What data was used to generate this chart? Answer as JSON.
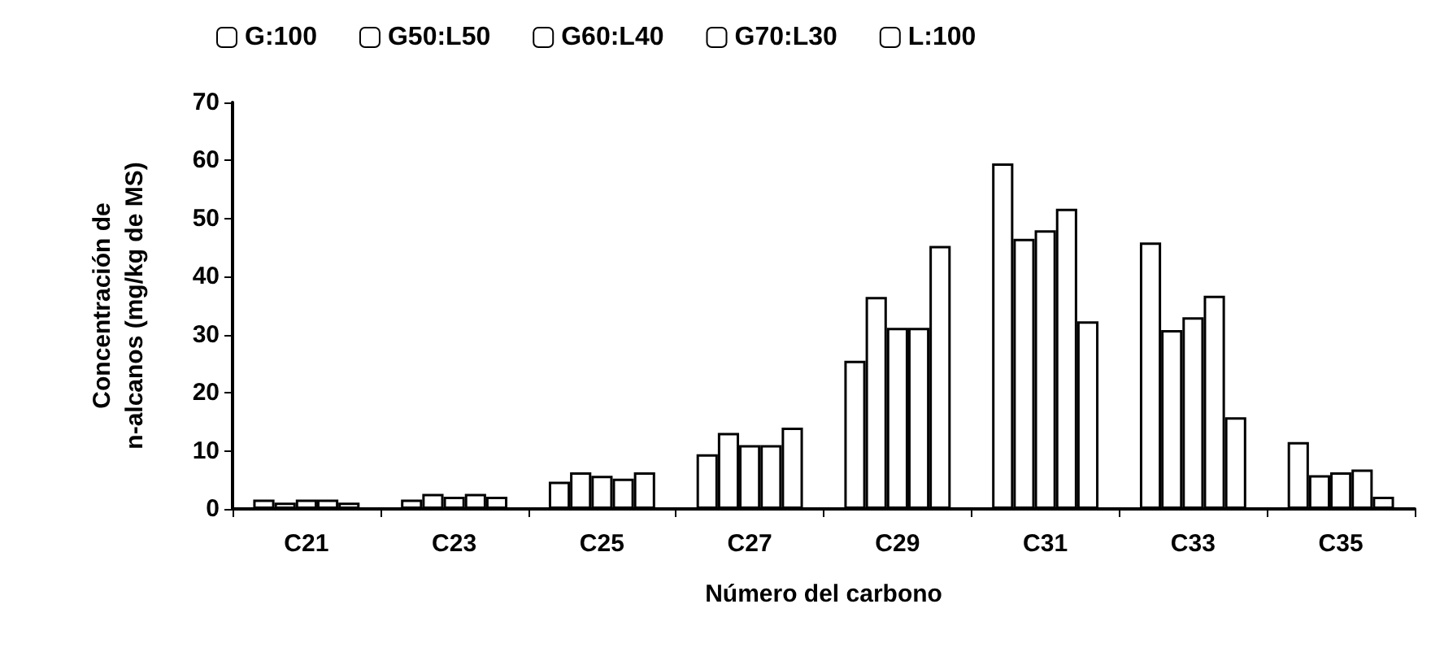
{
  "chart_data": {
    "type": "bar",
    "xlabel": "Número del carbono",
    "ylabel": "Concentración de\nn-alcanos (mg/kg de MS)",
    "categories": [
      "C21",
      "C23",
      "C25",
      "C27",
      "C29",
      "C31",
      "C33",
      "C35"
    ],
    "series": [
      {
        "name": "G:100",
        "color": "#ffffff",
        "values": [
          1.6,
          1.6,
          4.7,
          9.4,
          25.5,
          59.5,
          45.9,
          11.5
        ]
      },
      {
        "name": "G50:L50",
        "color": "#ffffff",
        "values": [
          1.1,
          2.6,
          6.3,
          13.1,
          36.5,
          46.5,
          30.8,
          5.8
        ]
      },
      {
        "name": "G60:L40",
        "color": "#ffffff",
        "values": [
          1.6,
          2.1,
          5.7,
          11,
          31.2,
          48,
          33,
          6.3
        ]
      },
      {
        "name": "G70:L30",
        "color": "#ffffff",
        "values": [
          1.6,
          2.6,
          5.2,
          11,
          31.2,
          51.7,
          36.7,
          6.8
        ]
      },
      {
        "name": "L:100",
        "color": "#ffffff",
        "values": [
          1.1,
          2.1,
          6.3,
          14,
          45.3,
          32.3,
          15.8,
          2.1
        ]
      }
    ],
    "ylim": [
      0,
      70
    ],
    "yticks": [
      0,
      10,
      20,
      30,
      40,
      50,
      60,
      70
    ],
    "grid": false,
    "legend": "top"
  }
}
